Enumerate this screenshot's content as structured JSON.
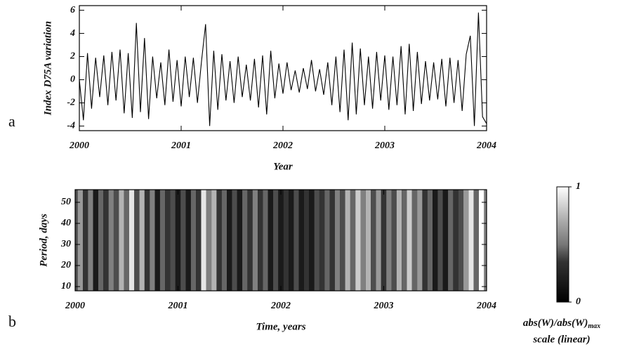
{
  "chart_data": [
    {
      "type": "line",
      "panel": "a",
      "ylabel": "Index D75A variation",
      "xlabel": "Year",
      "color": "#000000",
      "xlim": [
        2000,
        2004
      ],
      "xticks": [
        2000,
        2001,
        2002,
        2003,
        2004
      ],
      "ylim": [
        -4.4,
        6.4
      ],
      "yticks": [
        -4,
        -2,
        0,
        2,
        4,
        6
      ],
      "x": [
        2000,
        2000.04,
        2000.08,
        2000.12,
        2000.16,
        2000.2,
        2000.24,
        2000.28,
        2000.32,
        2000.36,
        2000.4,
        2000.44,
        2000.48,
        2000.52,
        2000.56,
        2000.6,
        2000.64,
        2000.68,
        2000.72,
        2000.76,
        2000.8,
        2000.84,
        2000.88,
        2000.92,
        2000.96,
        2001,
        2001.04,
        2001.08,
        2001.12,
        2001.16,
        2001.2,
        2001.24,
        2001.28,
        2001.32,
        2001.36,
        2001.4,
        2001.44,
        2001.48,
        2001.52,
        2001.56,
        2001.6,
        2001.64,
        2001.68,
        2001.72,
        2001.76,
        2001.8,
        2001.84,
        2001.88,
        2001.92,
        2001.96,
        2002,
        2002.04,
        2002.08,
        2002.12,
        2002.16,
        2002.2,
        2002.24,
        2002.28,
        2002.32,
        2002.36,
        2002.4,
        2002.44,
        2002.48,
        2002.52,
        2002.56,
        2002.6,
        2002.64,
        2002.68,
        2002.72,
        2002.76,
        2002.8,
        2002.84,
        2002.88,
        2002.92,
        2002.96,
        2003,
        2003.04,
        2003.08,
        2003.12,
        2003.16,
        2003.2,
        2003.24,
        2003.28,
        2003.32,
        2003.36,
        2003.4,
        2003.44,
        2003.48,
        2003.52,
        2003.56,
        2003.6,
        2003.64,
        2003.68,
        2003.72,
        2003.76,
        2003.8,
        2003.84,
        2003.88,
        2003.92,
        2003.96,
        2004
      ],
      "values": [
        0,
        -3.5,
        2.3,
        -2.5,
        1.9,
        -1.5,
        2.1,
        -2.2,
        2.4,
        -1.8,
        2.6,
        -2.9,
        2.3,
        -3.3,
        4.9,
        -2.8,
        3.6,
        -3.4,
        2.0,
        -1.6,
        1.5,
        -2.2,
        2.6,
        -1.9,
        1.7,
        -2.3,
        2.0,
        -1.5,
        1.9,
        -2.0,
        1.6,
        4.8,
        -4.0,
        2.5,
        -2.6,
        2.2,
        -1.8,
        1.6,
        -2.0,
        2.0,
        -1.5,
        1.3,
        -1.8,
        1.8,
        -2.4,
        2.1,
        -3.0,
        2.5,
        -1.6,
        1.4,
        -1.2,
        1.5,
        -0.9,
        0.8,
        -1.1,
        1.0,
        -0.8,
        1.7,
        -1.0,
        0.9,
        -1.3,
        1.5,
        -2.2,
        2.0,
        -2.8,
        2.6,
        -3.5,
        3.2,
        -3.0,
        2.7,
        -2.2,
        2.0,
        -2.5,
        2.4,
        -1.8,
        2.1,
        -2.6,
        2.0,
        -2.2,
        2.9,
        -3.0,
        3.1,
        -2.7,
        2.4,
        -2.1,
        1.6,
        -1.8,
        1.5,
        -1.7,
        1.8,
        -2.3,
        1.9,
        -2.0,
        1.7,
        -2.7,
        2.2,
        3.8,
        -4.0,
        5.8,
        -3.2,
        -3.8
      ]
    },
    {
      "type": "heatmap",
      "panel": "b",
      "ylabel": "Period, days",
      "xlabel": "Time, years",
      "xlim": [
        2000,
        2004
      ],
      "xticks": [
        2000,
        2001,
        2002,
        2003,
        2004
      ],
      "ylim": [
        8,
        56
      ],
      "yticks": [
        10,
        20,
        30,
        40,
        50
      ],
      "x": [
        2000,
        2000.05,
        2000.1,
        2000.15,
        2000.2,
        2000.25,
        2000.3,
        2000.35,
        2000.4,
        2000.45,
        2000.5,
        2000.55,
        2000.6,
        2000.65,
        2000.7,
        2000.75,
        2000.8,
        2000.85,
        2000.9,
        2000.95,
        2001,
        2001.05,
        2001.1,
        2001.15,
        2001.2,
        2001.25,
        2001.3,
        2001.35,
        2001.4,
        2001.45,
        2001.5,
        2001.55,
        2001.6,
        2001.65,
        2001.7,
        2001.75,
        2001.8,
        2001.85,
        2001.9,
        2001.95,
        2002,
        2002.05,
        2002.1,
        2002.15,
        2002.2,
        2002.25,
        2002.3,
        2002.35,
        2002.4,
        2002.45,
        2002.5,
        2002.55,
        2002.6,
        2002.65,
        2002.7,
        2002.75,
        2002.8,
        2002.85,
        2002.9,
        2002.95,
        2003,
        2003.05,
        2003.1,
        2003.15,
        2003.2,
        2003.25,
        2003.3,
        2003.35,
        2003.4,
        2003.45,
        2003.5,
        2003.55,
        2003.6,
        2003.65,
        2003.7,
        2003.75,
        2003.8,
        2003.85,
        2003.9,
        2003.95,
        2004
      ],
      "values": [
        0.3,
        0.6,
        0.2,
        0.5,
        0.1,
        0.4,
        0.2,
        0.5,
        0.3,
        0.7,
        0.4,
        0.9,
        0.3,
        0.7,
        0.2,
        0.5,
        0.1,
        0.4,
        0.2,
        0.3,
        0.1,
        0.3,
        0.1,
        0.4,
        0.2,
        0.9,
        0.5,
        0.7,
        0.2,
        0.4,
        0.1,
        0.3,
        0.1,
        0.4,
        0.2,
        0.5,
        0.2,
        0.4,
        0.1,
        0.3,
        0.1,
        0.2,
        0.1,
        0.3,
        0.1,
        0.2,
        0.1,
        0.3,
        0.2,
        0.4,
        0.2,
        0.5,
        0.3,
        0.7,
        0.4,
        0.8,
        0.5,
        0.7,
        0.3,
        0.6,
        0.2,
        0.5,
        0.3,
        0.7,
        0.4,
        0.8,
        0.4,
        0.6,
        0.2,
        0.4,
        0.1,
        0.3,
        0.1,
        0.4,
        0.2,
        0.3,
        0.6,
        0.9,
        0.4,
        1.0,
        0.5
      ],
      "clim": [
        0,
        1
      ],
      "cticks": [
        0,
        1
      ],
      "colorbar_label": "abs(W)/abs(W)",
      "colorbar_label_sub": "max",
      "colorbar_label2": "scale (linear)"
    }
  ]
}
